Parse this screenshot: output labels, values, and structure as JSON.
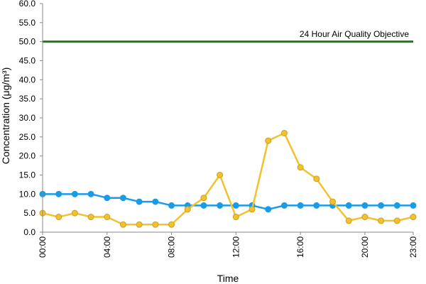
{
  "chart_data": {
    "type": "line",
    "title": "",
    "xlabel": "Time",
    "ylabel": "Concentration (μg/m³)",
    "ylim": [
      0,
      60
    ],
    "x": [
      "00:00",
      "01:00",
      "02:00",
      "03:00",
      "04:00",
      "05:00",
      "06:00",
      "07:00",
      "08:00",
      "09:00",
      "10:00",
      "11:00",
      "12:00",
      "13:00",
      "14:00",
      "15:00",
      "16:00",
      "17:00",
      "18:00",
      "19:00",
      "20:00",
      "21:00",
      "22:00",
      "23:00"
    ],
    "x_tick_labels": [
      "00:00",
      "04:00",
      "08:00",
      "12:00",
      "16:00",
      "20:00",
      "23:00"
    ],
    "y_tick_labels": [
      "0.0",
      "5.0",
      "10.0",
      "15.0",
      "20.0",
      "25.0",
      "30.0",
      "35.0",
      "40.0",
      "45.0",
      "50.0",
      "55.0",
      "60.0"
    ],
    "grid": false,
    "series": [
      {
        "color": "#1a9be8",
        "values": [
          10,
          10,
          10,
          10,
          9,
          9,
          8,
          8,
          7,
          7,
          7,
          7,
          7,
          7,
          6,
          7,
          7,
          7,
          7,
          7,
          7,
          7,
          7,
          7
        ]
      },
      {
        "color": "#f2c12e",
        "values": [
          5,
          4,
          5,
          4,
          4,
          2,
          2,
          2,
          2,
          6,
          9,
          15,
          4,
          6,
          24,
          26,
          17,
          14,
          8,
          3,
          4,
          3,
          3,
          4
        ]
      }
    ],
    "reference_line": {
      "label": "24 Hour Air Quality Objective",
      "value": 50,
      "color": "#1f7a1f"
    }
  }
}
